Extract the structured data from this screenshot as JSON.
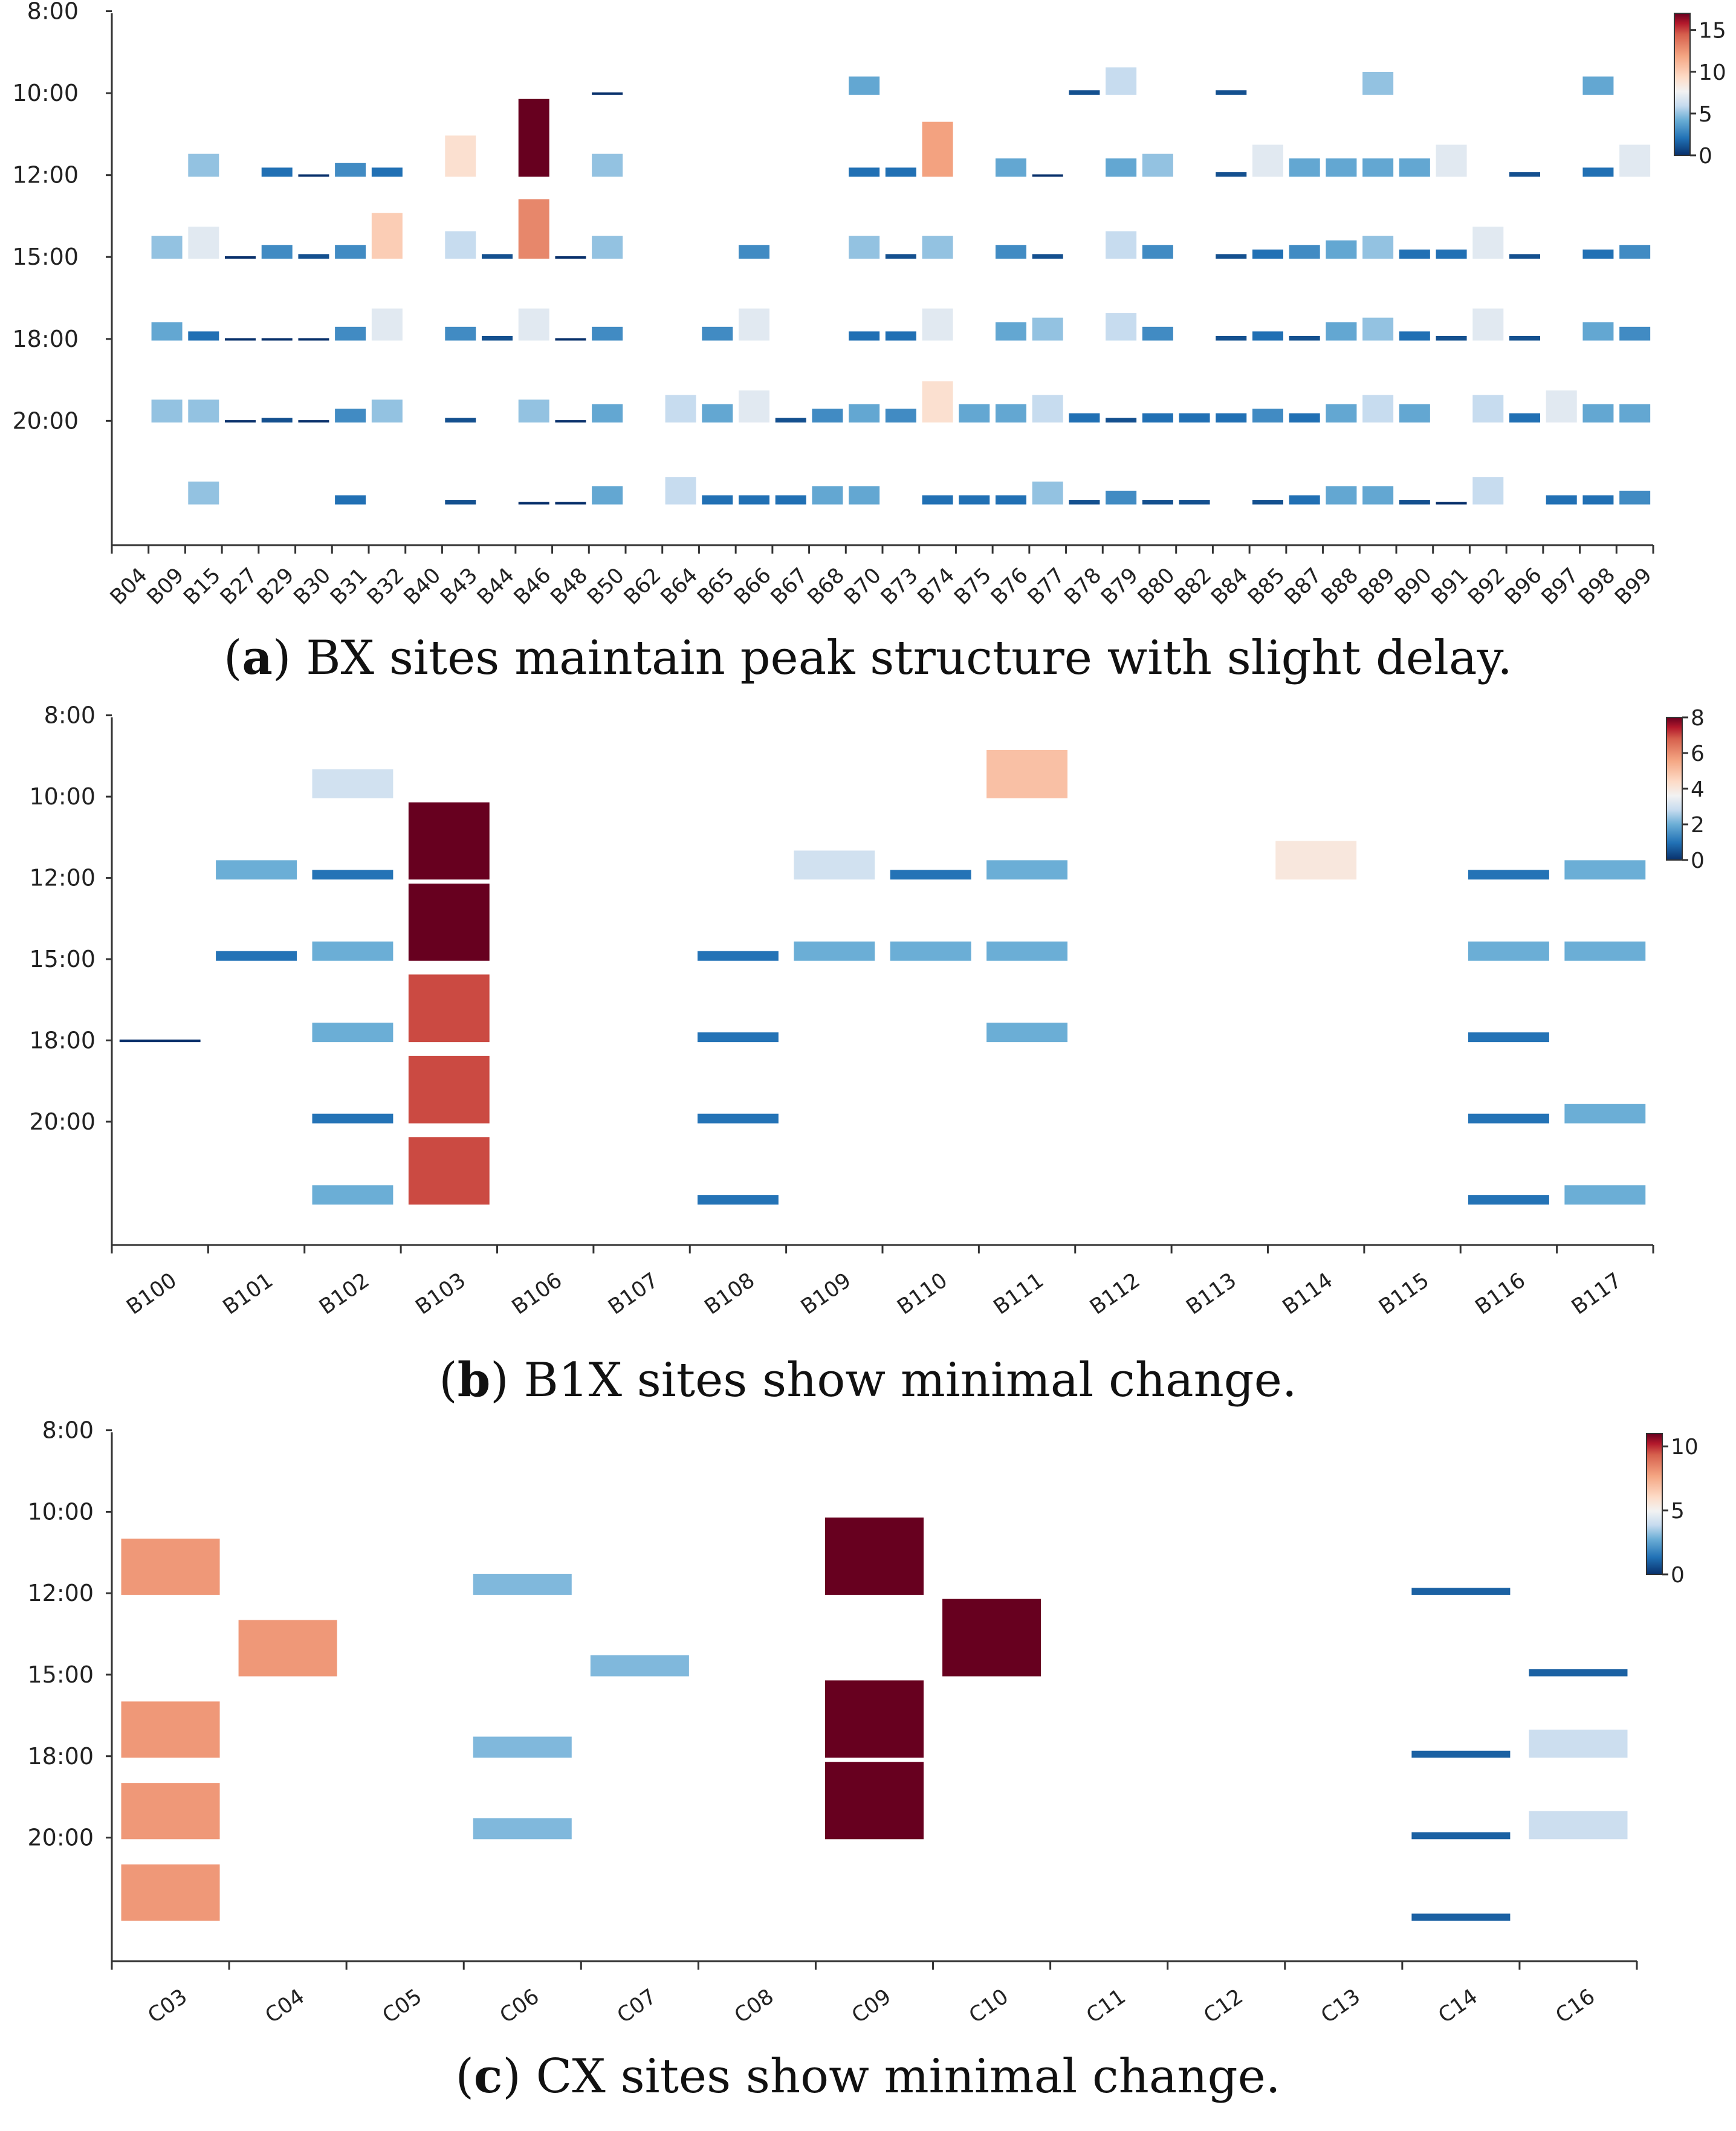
{
  "colorscale": {
    "stops": [
      {
        "t": 0.0,
        "color": "#08306b"
      },
      {
        "t": 0.12,
        "color": "#2171b5"
      },
      {
        "t": 0.25,
        "color": "#6baed6"
      },
      {
        "t": 0.35,
        "color": "#c6dbef"
      },
      {
        "t": 0.45,
        "color": "#f2f2f2"
      },
      {
        "t": 0.55,
        "color": "#fddbc7"
      },
      {
        "t": 0.7,
        "color": "#f4a582"
      },
      {
        "t": 0.85,
        "color": "#d6604d"
      },
      {
        "t": 0.93,
        "color": "#b2182b"
      },
      {
        "t": 1.0,
        "color": "#67001f"
      }
    ]
  },
  "chart_data": [
    {
      "type": "heatmap",
      "panel_label": "a",
      "caption": "BX sites maintain peak structure with slight delay.",
      "caption_prefix": "(",
      "caption_suffix": ") ",
      "y_tick_labels": [
        "8:00",
        "10:00",
        "12:00",
        "15:00",
        "18:00",
        "20:00"
      ],
      "time_slots": 6,
      "colorbar": {
        "min": 0,
        "max": 17,
        "ticks": [
          0,
          5,
          10,
          15
        ]
      },
      "categories": [
        "B04",
        "B09",
        "B15",
        "B27",
        "B29",
        "B30",
        "B31",
        "B32",
        "B40",
        "B43",
        "B44",
        "B46",
        "B48",
        "B50",
        "B62",
        "B64",
        "B65",
        "B66",
        "B67",
        "B68",
        "B70",
        "B73",
        "B74",
        "B75",
        "B76",
        "B77",
        "B78",
        "B79",
        "B80",
        "B82",
        "B84",
        "B85",
        "B87",
        "B88",
        "B89",
        "B90",
        "B91",
        "B92",
        "B96",
        "B97",
        "B98",
        "B99"
      ],
      "values": [
        [
          null,
          null,
          null,
          null,
          null,
          null
        ],
        [
          null,
          null,
          5,
          4,
          5,
          null
        ],
        [
          null,
          5,
          7,
          2,
          5,
          5
        ],
        [
          null,
          null,
          0,
          0,
          0,
          null
        ],
        [
          null,
          2,
          3,
          0,
          1,
          null
        ],
        [
          null,
          0,
          1,
          0,
          0,
          null
        ],
        [
          null,
          3,
          3,
          3,
          3,
          2
        ],
        [
          null,
          2,
          10,
          7,
          5,
          null
        ],
        [
          null,
          null,
          null,
          null,
          null,
          null
        ],
        [
          null,
          9,
          6,
          3,
          1,
          1
        ],
        [
          null,
          null,
          1,
          1,
          null,
          null
        ],
        [
          null,
          17,
          13,
          7,
          5,
          0
        ],
        [
          null,
          null,
          0,
          0,
          0,
          0
        ],
        [
          0,
          5,
          5,
          3,
          4,
          4
        ],
        [
          null,
          null,
          null,
          null,
          null,
          null
        ],
        [
          null,
          null,
          null,
          null,
          6,
          6
        ],
        [
          null,
          null,
          null,
          3,
          4,
          2
        ],
        [
          null,
          null,
          3,
          7,
          7,
          2
        ],
        [
          null,
          null,
          null,
          null,
          1,
          2
        ],
        [
          null,
          null,
          null,
          null,
          3,
          4
        ],
        [
          4,
          2,
          5,
          2,
          4,
          4
        ],
        [
          null,
          2,
          1,
          2,
          3,
          null
        ],
        [
          null,
          12,
          5,
          7,
          9,
          2
        ],
        [
          null,
          null,
          null,
          null,
          4,
          2
        ],
        [
          null,
          4,
          3,
          4,
          4,
          2
        ],
        [
          null,
          0,
          1,
          5,
          6,
          5
        ],
        [
          1,
          null,
          null,
          null,
          2,
          1
        ],
        [
          6,
          4,
          6,
          6,
          1,
          3
        ],
        [
          null,
          5,
          3,
          3,
          2,
          1
        ],
        [
          null,
          null,
          null,
          null,
          2,
          1
        ],
        [
          1,
          1,
          1,
          1,
          2,
          null
        ],
        [
          null,
          7,
          2,
          2,
          3,
          1
        ],
        [
          null,
          4,
          3,
          1,
          2,
          2
        ],
        [
          null,
          4,
          4,
          4,
          4,
          4
        ],
        [
          5,
          4,
          5,
          5,
          6,
          4
        ],
        [
          null,
          4,
          2,
          2,
          4,
          1
        ],
        [
          null,
          7,
          2,
          1,
          null,
          0
        ],
        [
          null,
          null,
          7,
          7,
          6,
          6
        ],
        [
          null,
          1,
          1,
          1,
          2,
          null
        ],
        [
          null,
          null,
          null,
          null,
          7,
          2
        ],
        [
          4,
          2,
          2,
          4,
          4,
          2
        ],
        [
          null,
          7,
          3,
          3,
          4,
          3
        ]
      ]
    },
    {
      "type": "heatmap",
      "panel_label": "b",
      "caption": "B1X sites show minimal change.",
      "caption_prefix": "(",
      "caption_suffix": ") ",
      "y_tick_labels": [
        "8:00",
        "10:00",
        "12:00",
        "15:00",
        "18:00",
        "20:00"
      ],
      "time_slots": 6,
      "colorbar": {
        "min": 0,
        "max": 8,
        "ticks": [
          0,
          2,
          4,
          6,
          8
        ]
      },
      "categories": [
        "B100",
        "B101",
        "B102",
        "B103",
        "B106",
        "B107",
        "B108",
        "B109",
        "B110",
        "B111",
        "B112",
        "B113",
        "B114",
        "B115",
        "B116",
        "B117"
      ],
      "values": [
        [
          null,
          null,
          null,
          0,
          null,
          null
        ],
        [
          null,
          2,
          1,
          null,
          null,
          null
        ],
        [
          3,
          1,
          2,
          2,
          1,
          2
        ],
        [
          null,
          8,
          8,
          7,
          7,
          7
        ],
        [
          null,
          null,
          null,
          null,
          null,
          null
        ],
        [
          null,
          null,
          null,
          null,
          null,
          null
        ],
        [
          null,
          null,
          1,
          1,
          1,
          1
        ],
        [
          null,
          3,
          2,
          null,
          null,
          null
        ],
        [
          null,
          1,
          2,
          null,
          null,
          null
        ],
        [
          5,
          2,
          2,
          2,
          null,
          null
        ],
        [
          null,
          null,
          null,
          null,
          null,
          null
        ],
        [
          null,
          null,
          null,
          null,
          null,
          null
        ],
        [
          null,
          4,
          null,
          null,
          null,
          null
        ],
        [
          null,
          null,
          null,
          null,
          null,
          null
        ],
        [
          null,
          1,
          2,
          1,
          1,
          1
        ],
        [
          null,
          2,
          2,
          null,
          2,
          2
        ]
      ]
    },
    {
      "type": "heatmap",
      "panel_label": "c",
      "caption": "CX sites show minimal change.",
      "caption_prefix": "(",
      "caption_suffix": ") ",
      "y_tick_labels": [
        "8:00",
        "10:00",
        "12:00",
        "15:00",
        "18:00",
        "20:00"
      ],
      "time_slots": 6,
      "colorbar": {
        "min": 0,
        "max": 11,
        "ticks": [
          0,
          5,
          10
        ]
      },
      "categories": [
        "C03",
        "C04",
        "C05",
        "C06",
        "C07",
        "C08",
        "C09",
        "C10",
        "C11",
        "C12",
        "C13",
        "C14",
        "C16"
      ],
      "values": [
        [
          null,
          8,
          null,
          8,
          8,
          8
        ],
        [
          null,
          null,
          8,
          null,
          null,
          null
        ],
        [
          null,
          null,
          null,
          null,
          null,
          null
        ],
        [
          null,
          3,
          null,
          3,
          3,
          null
        ],
        [
          null,
          null,
          3,
          null,
          null,
          null
        ],
        [
          null,
          null,
          null,
          null,
          null,
          null
        ],
        [
          null,
          11,
          null,
          11,
          11,
          null
        ],
        [
          null,
          null,
          11,
          null,
          null,
          null
        ],
        [
          null,
          null,
          null,
          null,
          null,
          null
        ],
        [
          null,
          null,
          null,
          null,
          null,
          null
        ],
        [
          null,
          null,
          null,
          null,
          null,
          null
        ],
        [
          null,
          1,
          null,
          1,
          1,
          1
        ],
        [
          null,
          null,
          1,
          4,
          4,
          null
        ]
      ]
    }
  ]
}
